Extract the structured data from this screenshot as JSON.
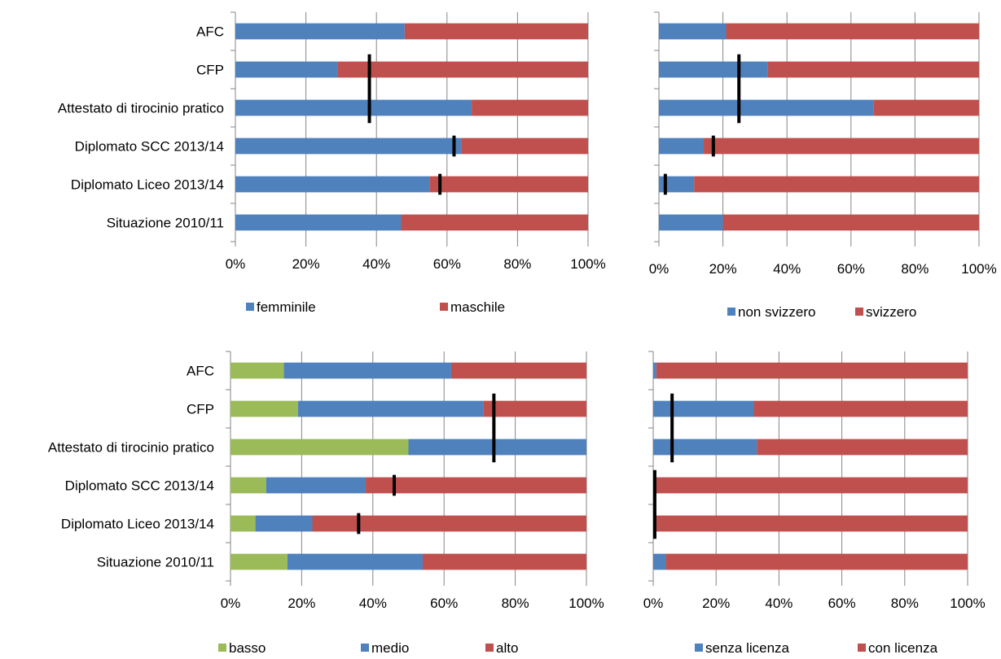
{
  "colors": {
    "green": "#9bbb59",
    "blue": "#4f81bd",
    "red": "#c0504d",
    "grid": "#868686",
    "marker": "#000000",
    "text": "#000000"
  },
  "chart_data": [
    {
      "type": "bar",
      "orientation": "horizontal",
      "stacked": "percent",
      "categories": [
        "AFC",
        "CFP",
        "Attestato di tirocinio pratico",
        "Diplomato SCC 2013/14",
        "Diplomato Liceo 2013/14",
        "Situazione 2010/11"
      ],
      "series": [
        {
          "name": "femminile",
          "color": "#4f81bd",
          "values": [
            48,
            29,
            67,
            64,
            55,
            47
          ]
        },
        {
          "name": "maschile",
          "color": "#c0504d",
          "values": [
            52,
            71,
            33,
            36,
            45,
            53
          ]
        }
      ],
      "markers": [
        null,
        38,
        38,
        62,
        58,
        null
      ],
      "xlim": [
        0,
        100
      ],
      "xticks": [
        "0%",
        "20%",
        "40%",
        "60%",
        "80%",
        "100%"
      ],
      "grid": true,
      "legend": "bottom"
    },
    {
      "type": "bar",
      "orientation": "horizontal",
      "stacked": "percent",
      "categories": [
        "AFC",
        "CFP",
        "Attestato di tirocinio pratico",
        "Diplomato SCC 2013/14",
        "Diplomato Liceo 2013/14",
        "Situazione 2010/11"
      ],
      "series": [
        {
          "name": "non svizzero",
          "color": "#4f81bd",
          "values": [
            21,
            34,
            67,
            14,
            11,
            20
          ]
        },
        {
          "name": "svizzero",
          "color": "#c0504d",
          "values": [
            79,
            66,
            33,
            86,
            89,
            80
          ]
        }
      ],
      "markers": [
        null,
        25,
        25,
        17,
        2,
        null
      ],
      "xlim": [
        0,
        100
      ],
      "xticks": [
        "0%",
        "20%",
        "40%",
        "60%",
        "80%",
        "100%"
      ],
      "grid": true,
      "legend": "bottom"
    },
    {
      "type": "bar",
      "orientation": "horizontal",
      "stacked": "percent",
      "categories": [
        "AFC",
        "CFP",
        "Attestato di tirocinio pratico",
        "Diplomato SCC 2013/14",
        "Diplomato Liceo 2013/14",
        "Situazione 2010/11"
      ],
      "series": [
        {
          "name": "basso",
          "color": "#9bbb59",
          "values": [
            15,
            19,
            50,
            10,
            7,
            16
          ]
        },
        {
          "name": "medio",
          "color": "#4f81bd",
          "values": [
            47,
            52,
            50,
            28,
            16,
            38
          ]
        },
        {
          "name": "alto",
          "color": "#c0504d",
          "values": [
            38,
            29,
            0,
            62,
            77,
            46
          ]
        }
      ],
      "markers": [
        null,
        74,
        74,
        46,
        36,
        null
      ],
      "xlim": [
        0,
        100
      ],
      "xticks": [
        "0%",
        "20%",
        "40%",
        "60%",
        "80%",
        "100%"
      ],
      "grid": true,
      "legend": "bottom"
    },
    {
      "type": "bar",
      "orientation": "horizontal",
      "stacked": "percent",
      "categories": [
        "AFC",
        "CFP",
        "Attestato di tirocinio pratico",
        "Diplomato SCC 2013/14",
        "Diplomato Liceo 2013/14",
        "Situazione 2010/11"
      ],
      "series": [
        {
          "name": "senza licenza",
          "color": "#4f81bd",
          "values": [
            1,
            32,
            33,
            0,
            0,
            4
          ]
        },
        {
          "name": "con licenza",
          "color": "#c0504d",
          "values": [
            99,
            68,
            67,
            100,
            100,
            96
          ]
        }
      ],
      "markers": [
        null,
        6,
        6,
        0.5,
        0.5,
        null
      ],
      "xlim": [
        0,
        100
      ],
      "xticks": [
        "0%",
        "20%",
        "40%",
        "60%",
        "80%",
        "100%"
      ],
      "grid": true,
      "legend": "bottom"
    }
  ]
}
